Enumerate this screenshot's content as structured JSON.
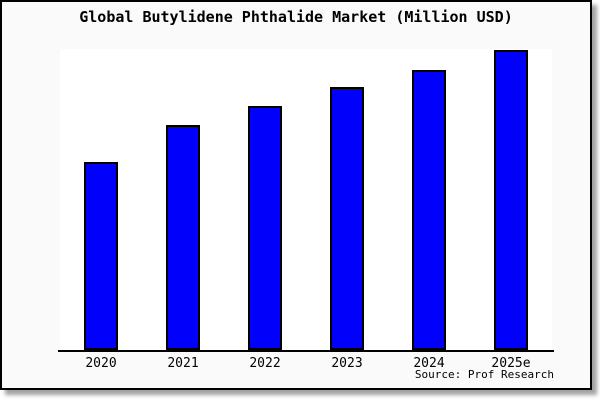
{
  "chart": {
    "title": "Global Butylidene Phthalide Market (Million USD)",
    "source_label": "Source: Prof Research",
    "colors": {
      "figure_background": "#fafafa",
      "plot_background": "#ffffff",
      "bar_fill": "#0000fb",
      "bar_border": "#000000",
      "axis_line": "#000000",
      "text": "#000000",
      "outer_border": "#000000"
    }
  },
  "chart_data": {
    "type": "bar",
    "title": "Global Butylidene Phthalide Market (Million USD)",
    "categories": [
      "2020",
      "2021",
      "2022",
      "2023",
      "2024",
      "2025e"
    ],
    "values": [
      188,
      225,
      244,
      263,
      280,
      300
    ],
    "value_scale_note": "no y-axis ticks or value labels visible; values are relative magnitudes estimated from bar pixel heights",
    "xlabel": "",
    "ylabel": "",
    "ylim": [
      0,
      302
    ],
    "grid": false,
    "legend": false,
    "source": "Prof Research"
  }
}
